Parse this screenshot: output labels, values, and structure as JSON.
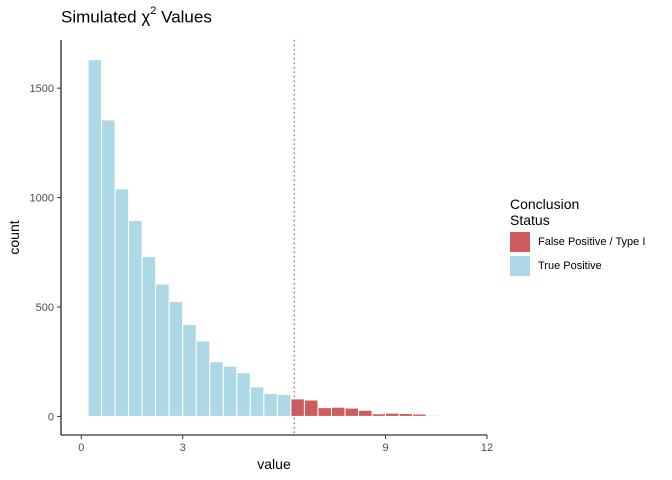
{
  "title": {
    "prefix": "Simulated ",
    "symbol": "χ",
    "superscript": "2",
    "suffix": " Values"
  },
  "chart_data": {
    "type": "bar",
    "title": "Simulated χ² Values",
    "xlabel": "value",
    "ylabel": "count",
    "xlim": [
      -0.6,
      12.0
    ],
    "ylim": [
      -85,
      1720
    ],
    "x_ticks": [
      0,
      3,
      9,
      12
    ],
    "x_tick_labels": [
      "0",
      "3",
      "9",
      "12"
    ],
    "y_ticks": [
      0,
      500,
      1000,
      1500
    ],
    "y_tick_labels": [
      "0",
      "500",
      "1000",
      "1500"
    ],
    "bin_width": 0.4,
    "critical_value": 6.3,
    "series": [
      {
        "name": "True Positive",
        "color": "#add8e6",
        "x": [
          0.4,
          0.8,
          1.2,
          1.6,
          2.0,
          2.4,
          2.8,
          3.2,
          3.6,
          4.0,
          4.4,
          4.8,
          5.2,
          5.6,
          6.0
        ],
        "values": [
          1630,
          1355,
          1040,
          895,
          730,
          605,
          525,
          420,
          345,
          250,
          230,
          200,
          135,
          105,
          100
        ]
      },
      {
        "name": "False Positive / Type I",
        "color": "#cd5c5c",
        "x": [
          6.4,
          6.8,
          7.2,
          7.6,
          8.0,
          8.4,
          8.8,
          9.2,
          9.6,
          10.0,
          10.4,
          10.8,
          11.2
        ],
        "values": [
          80,
          75,
          40,
          42,
          38,
          28,
          12,
          15,
          13,
          11,
          5,
          2,
          1
        ]
      }
    ],
    "legend": {
      "title": "Conclusion\nStatus",
      "placement": "right"
    },
    "grid": false
  }
}
